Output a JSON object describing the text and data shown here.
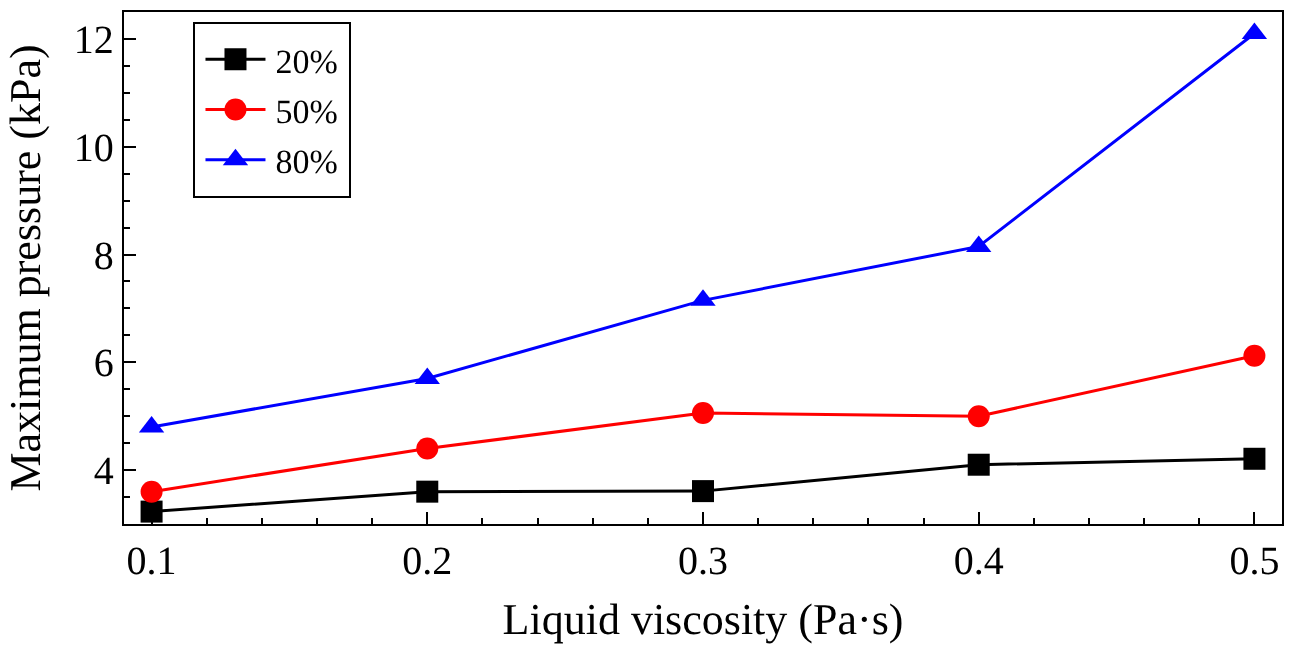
{
  "chart_data": {
    "type": "line",
    "xlabel": "Liquid viscosity (Pa·s)",
    "ylabel": "Maximum pressure (kPa)",
    "x": [
      0.1,
      0.2,
      0.3,
      0.4,
      0.5
    ],
    "series": [
      {
        "name": "20%",
        "color": "#000000",
        "marker": "square",
        "values": [
          3.23,
          3.6,
          3.61,
          4.1,
          4.21
        ]
      },
      {
        "name": "50%",
        "color": "#ff0000",
        "marker": "circle",
        "values": [
          3.6,
          4.4,
          5.06,
          5.0,
          6.12
        ]
      },
      {
        "name": "80%",
        "color": "#0000ff",
        "marker": "triangle",
        "values": [
          4.8,
          5.7,
          7.15,
          8.15,
          12.1
        ]
      }
    ],
    "xlim": [
      0.09,
      0.51
    ],
    "xticks": [
      0.1,
      0.2,
      0.3,
      0.4,
      0.5
    ],
    "ylim": [
      3,
      12.5
    ],
    "yticks": [
      4,
      6,
      8,
      10,
      12
    ],
    "grid": false,
    "legend": "top left",
    "line_style": "solid"
  }
}
